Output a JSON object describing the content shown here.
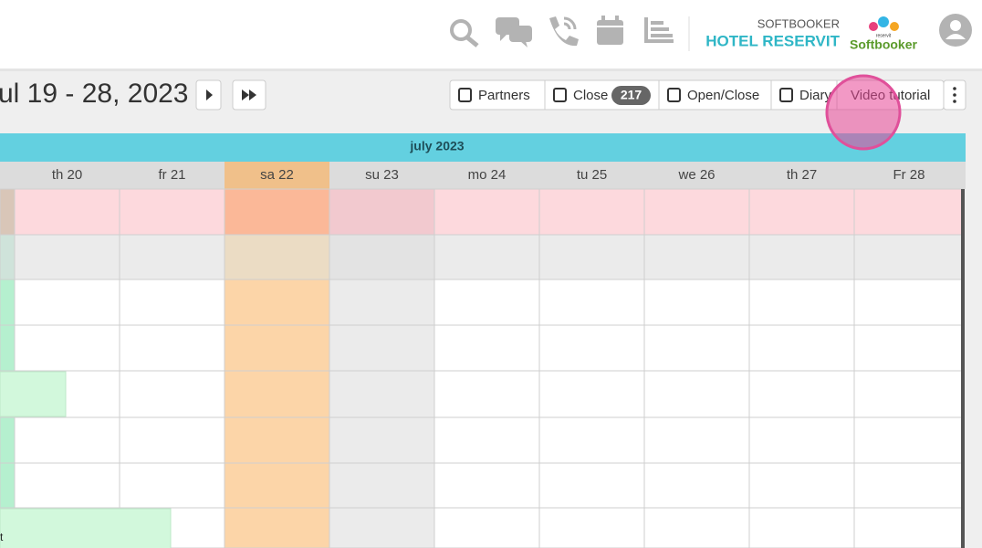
{
  "header": {
    "brand": "SOFTBOOKER",
    "hotel": "HOTEL RESERVIT",
    "logo_small": "reservit",
    "logo": "Softbooker"
  },
  "toolbar": {
    "date_range": "ul 19 - 28, 2023",
    "buttons": [
      "Partners",
      "Close",
      "Open/Close",
      "Diary",
      "Video tutorial"
    ],
    "close_count": 217
  },
  "calendar": {
    "month": "july 2023",
    "days": [
      "th 20",
      "fr 21",
      "sa 22",
      "su 23",
      "mo 24",
      "tu 25",
      "we 26",
      "th 27",
      "Fr 28"
    ],
    "fragment": "t"
  }
}
